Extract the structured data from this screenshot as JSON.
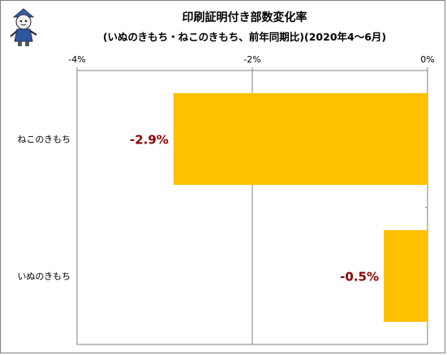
{
  "chart_data": {
    "type": "bar",
    "orientation": "horizontal",
    "title": "印刷証明付き部数変化率",
    "subtitle": "(いぬのきもち・ねこのきもち、前年同期比)(2020年4～6月)",
    "categories": [
      "ねこのきもち",
      "いぬのきもち"
    ],
    "values": [
      -2.9,
      -0.5
    ],
    "data_labels": [
      "-2.9%",
      "-0.5%"
    ],
    "xlim": [
      -4,
      0
    ],
    "x_ticks": [
      -4,
      -2,
      0
    ],
    "x_tick_labels": [
      "-4%",
      "-2%",
      "0%"
    ],
    "x_axis_position": "top",
    "xlabel": "",
    "ylabel": "",
    "grid": true,
    "legend": "none",
    "colors": {
      "bar": "#FFC000",
      "data_label": "#8B0000",
      "gridline": "#808080",
      "plot_border": "#808080"
    }
  },
  "decoration": {
    "mascot_icon": "cartoon-mascot-icon"
  }
}
